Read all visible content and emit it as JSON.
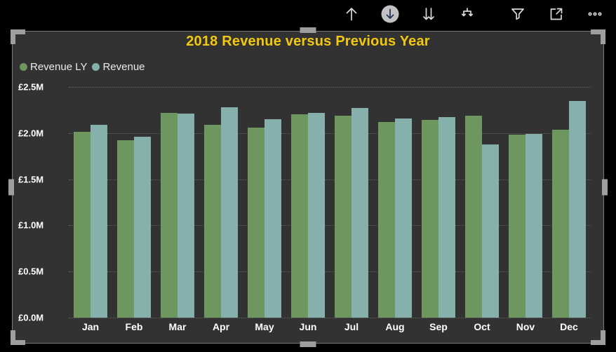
{
  "toolbar": {
    "icons": [
      "drill-up-icon",
      "drill-down-toggle-icon",
      "go-to-next-level-icon",
      "expand-all-icon",
      "filter-icon",
      "focus-mode-icon",
      "more-options-icon"
    ],
    "drill_down_active_bg": "#c2c2c2",
    "icon_color": "#d9d9d9"
  },
  "visual": {
    "title": "2018 Revenue versus Previous Year",
    "title_color": "#F2C811",
    "background": "#323232",
    "selected": true
  },
  "chart_data": {
    "type": "bar",
    "title": "2018 Revenue versus Previous Year",
    "categories": [
      "Jan",
      "Feb",
      "Mar",
      "Apr",
      "May",
      "Jun",
      "Jul",
      "Aug",
      "Sep",
      "Oct",
      "Nov",
      "Dec"
    ],
    "series": [
      {
        "name": "Revenue LY",
        "color": "#6E965F",
        "values": [
          2.01,
          1.92,
          2.22,
          2.09,
          2.06,
          2.2,
          2.19,
          2.12,
          2.14,
          2.19,
          1.98,
          2.04
        ]
      },
      {
        "name": "Revenue",
        "color": "#85B0AC",
        "values": [
          2.09,
          1.96,
          2.21,
          2.28,
          2.15,
          2.22,
          2.27,
          2.16,
          2.17,
          1.88,
          1.99,
          2.35
        ]
      }
    ],
    "values_unit": "£M",
    "xlabel": "",
    "ylabel": "",
    "ylim": [
      0,
      2.5
    ],
    "y_ticks": [
      "£2.5M",
      "£2.0M",
      "£1.5M",
      "£1.0M",
      "£0.5M",
      "£0.0M"
    ],
    "grid": "horizontal-dotted",
    "legend_position": "top-left",
    "gridline_color": "#606060",
    "axis_text_color": "#ffffff"
  }
}
